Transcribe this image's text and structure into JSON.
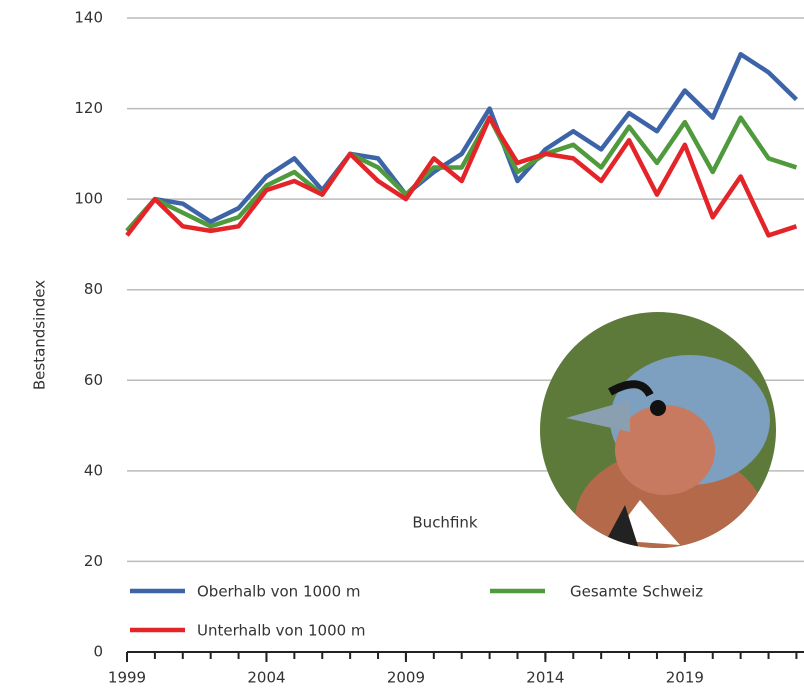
{
  "chart_data": {
    "type": "line",
    "y_label": "Bestandsindex",
    "annotation": "Buchfink",
    "x": [
      1999,
      2000,
      2001,
      2002,
      2003,
      2004,
      2005,
      2006,
      2007,
      2008,
      2009,
      2010,
      2011,
      2012,
      2013,
      2014,
      2015,
      2016,
      2017,
      2018,
      2019,
      2020,
      2021,
      2022,
      2023
    ],
    "series": [
      {
        "name": "Oberhalb von 1000 m",
        "color": "#3d64a8",
        "values": [
          93,
          100,
          99,
          95,
          98,
          105,
          109,
          102,
          110,
          109,
          101,
          106,
          110,
          120,
          104,
          111,
          115,
          111,
          119,
          115,
          124,
          118,
          132,
          128,
          122
        ]
      },
      {
        "name": "Gesamte Schweiz",
        "color": "#4f9a3c",
        "values": [
          93,
          100,
          97,
          94,
          96,
          103,
          106,
          101,
          110,
          107,
          101,
          107,
          107,
          118,
          106,
          110,
          112,
          107,
          116,
          108,
          117,
          106,
          118,
          109,
          107
        ]
      },
      {
        "name": "Unterhalb von 1000 m",
        "color": "#e32428",
        "values": [
          92,
          100,
          94,
          93,
          94,
          102,
          104,
          101,
          110,
          104,
          100,
          109,
          104,
          118,
          108,
          110,
          109,
          104,
          113,
          101,
          112,
          96,
          105,
          92,
          94
        ]
      }
    ],
    "xlim": [
      1999,
      2023.2
    ],
    "xticks": [
      1999,
      2004,
      2009,
      2014,
      2019
    ],
    "ylim": [
      0,
      140
    ],
    "yticks": [
      0,
      20,
      40,
      60,
      80,
      100,
      120,
      140
    ],
    "grid": true
  }
}
